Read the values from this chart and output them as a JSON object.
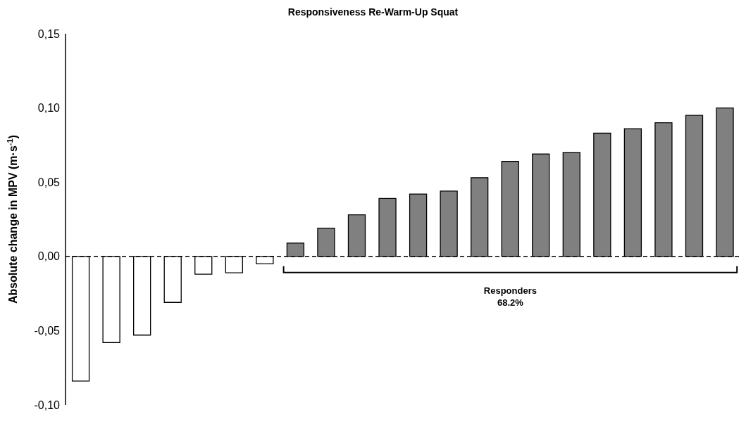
{
  "chart_data": {
    "type": "bar",
    "title": "Responsiveness Re-Warm-Up Squat",
    "ylabel": "Absolute change in MPV (m·s$^{-1}$)",
    "categories": [
      null,
      null,
      null,
      null,
      null,
      null,
      null,
      null,
      null,
      null,
      null,
      null,
      null,
      null,
      null,
      null,
      null,
      null,
      null,
      null,
      null,
      null
    ],
    "values": [
      -0.084,
      -0.058,
      -0.053,
      -0.031,
      -0.012,
      -0.011,
      -0.005,
      0.009,
      0.019,
      0.028,
      0.039,
      0.042,
      0.044,
      0.053,
      0.064,
      0.069,
      0.07,
      0.083,
      0.086,
      0.09,
      0.095,
      0.1
    ],
    "colors": [
      "#ffffff",
      "#ffffff",
      "#ffffff",
      "#ffffff",
      "#ffffff",
      "#ffffff",
      "#ffffff",
      "#808080",
      "#808080",
      "#808080",
      "#808080",
      "#808080",
      "#808080",
      "#808080",
      "#808080",
      "#808080",
      "#808080",
      "#808080",
      "#808080",
      "#808080",
      "#808080",
      "#808080"
    ],
    "ylim": [
      -0.1,
      0.15
    ],
    "yticks": [
      {
        "value": -0.1,
        "label": "-0,10"
      },
      {
        "value": -0.05,
        "label": "-0,05"
      },
      {
        "value": 0,
        "label": "0,00"
      },
      {
        "value": 0.05,
        "label": "0,05"
      },
      {
        "value": 0.1,
        "label": "0,10"
      },
      {
        "value": 0.15,
        "label": "0,15"
      }
    ],
    "tick_labels": "y",
    "ref_lines": [
      {
        "axis": "y",
        "value": 0,
        "line_style": "dashed",
        "color": "#000000"
      }
    ],
    "annotations": [
      "Responders\n68.2%"
    ]
  }
}
